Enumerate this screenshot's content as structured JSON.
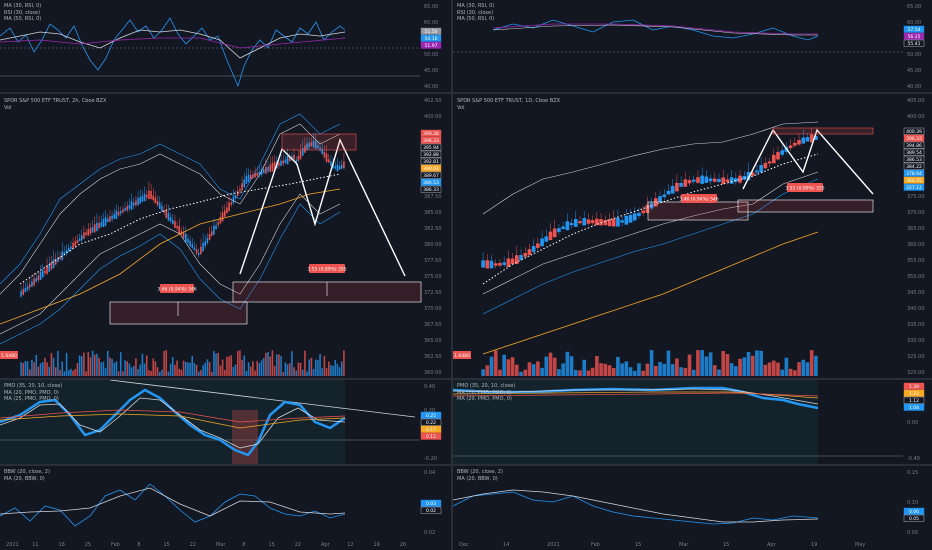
{
  "left": {
    "rsi_titles": [
      "MA (30, RSI, 0)",
      "RSI (30, close)",
      "MA (50, RSI, 0)"
    ],
    "rsi_right_ticks": [
      "65.00",
      "60.00",
      "55.00",
      "50.00",
      "45.00",
      "40.00"
    ],
    "rsi_tags": [
      {
        "text": "55.50",
        "color": "#9598a1"
      },
      {
        "text": "54.16",
        "color": "#2196f3"
      },
      {
        "text": "51.97",
        "color": "#9c27b0"
      }
    ],
    "main_titles": [
      "SPDR S&P 500 ETF TRUST, 2h, Cboe BZX",
      "Vol"
    ],
    "main_right_ticks": [
      "402.50",
      "400.00",
      "397.50",
      "395.00",
      "392.50",
      "390.00",
      "387.50",
      "385.00",
      "382.50",
      "380.00",
      "377.50",
      "375.00",
      "372.50",
      "370.00",
      "367.50",
      "365.00",
      "362.50",
      "360.00"
    ],
    "main_tags": [
      {
        "text": "399.38",
        "color": "#ef5350"
      },
      {
        "text": "396.33",
        "color": "#ef5350"
      },
      {
        "text": "395.94",
        "color": "#131722"
      },
      {
        "text": "392.88",
        "color": "#131722"
      },
      {
        "text": "392.81",
        "color": "#131722"
      },
      {
        "text": "390.04",
        "color": "#f9a825"
      },
      {
        "text": "389.67",
        "color": "#131722"
      },
      {
        "text": "386.53",
        "color": "#2196f3"
      },
      {
        "text": "386.33",
        "color": "#131722"
      }
    ],
    "box_labels": [
      "3.46 (0.94%) 346",
      "3.55 (0.89%) 355"
    ],
    "volume_tag": "1.6480",
    "pmo_titles": [
      "PMO (35, 20, 10, close)",
      "MA (20, PMO, PMO, 0)",
      "MA (25, PMO, PMO, 0)"
    ],
    "pmo_right_ticks": [
      "0.40",
      "0.20",
      "0.00",
      "-0.20"
    ],
    "pmo_tags": [
      {
        "text": "0.25",
        "color": "#2196f3"
      },
      {
        "text": "0.22",
        "color": "#131722"
      },
      {
        "text": "0.17",
        "color": "#f9a825"
      },
      {
        "text": "0.12",
        "color": "#ef5350"
      }
    ],
    "bbw_titles": [
      "BBW (20, close, 2)",
      "MA (20, BBW, 0)"
    ],
    "bbw_right_ticks": [
      "0.04",
      "0.02"
    ],
    "bbw_tags": [
      {
        "text": "0.03",
        "color": "#2196f3"
      },
      {
        "text": "0.02",
        "color": "#131722"
      }
    ],
    "time_axis": [
      "2021",
      "11",
      "18",
      "25",
      "Feb",
      "8",
      "15",
      "22",
      "Mar",
      "8",
      "15",
      "22",
      "Apr",
      "12",
      "19",
      "26"
    ]
  },
  "right": {
    "rsi_titles": [
      "MA (30, RSI, 0)",
      "RSI (30, close)",
      "MA (50, RSI, 0)"
    ],
    "rsi_right_ticks": [
      "65.00",
      "60.00",
      "55.00",
      "50.00",
      "45.00",
      "40.00"
    ],
    "rsi_tags": [
      {
        "text": "57.54",
        "color": "#2196f3"
      },
      {
        "text": "56.25",
        "color": "#9c27b0"
      },
      {
        "text": "55.41",
        "color": "#131722"
      }
    ],
    "main_titles": [
      "SPDR S&P 500 ETF TRUST, 1D, Cboe BZX",
      "Vol"
    ],
    "main_right_ticks": [
      "405.00",
      "400.00",
      "395.00",
      "390.00",
      "385.00",
      "380.00",
      "375.00",
      "370.00",
      "365.00",
      "360.00",
      "355.00",
      "350.00",
      "345.00",
      "340.00",
      "335.00",
      "330.00",
      "325.00",
      "320.00"
    ],
    "main_tags": [
      {
        "text": "400.39",
        "color": "#131722"
      },
      {
        "text": "396.33",
        "color": "#ef5350"
      },
      {
        "text": "394.86",
        "color": "#131722"
      },
      {
        "text": "389.54",
        "color": "#131722"
      },
      {
        "text": "386.53",
        "color": "#131722"
      },
      {
        "text": "384.22",
        "color": "#131722"
      },
      {
        "text": "378.94",
        "color": "#2196f3"
      },
      {
        "text": "364.55",
        "color": "#f9a825"
      },
      {
        "text": "327.12",
        "color": "#2196f3"
      }
    ],
    "box_labels": [
      "3.46 (0.94%) 346",
      "3.55 (0.89%) 355"
    ],
    "volume_tag": "1.6480",
    "pmo_titles": [
      "PMO (35, 20, 10, close)",
      "MA (20, PMO, PMO, 0)",
      "MA (20, PMO, PMO, 0)"
    ],
    "pmo_right_ticks": [
      "0.40",
      "0.00",
      "-0.40"
    ],
    "pmo_tags": [
      {
        "text": "1.39",
        "color": "#ef5350"
      },
      {
        "text": "1.22",
        "color": "#f9a825"
      },
      {
        "text": "1.12",
        "color": "#131722"
      },
      {
        "text": "1.04",
        "color": "#2196f3"
      }
    ],
    "bbw_titles": [
      "BBW (20, close, 2)",
      "MA (20, BBW, 0)"
    ],
    "bbw_right_ticks": [
      "0.15",
      "0.10",
      "0.05"
    ],
    "bbw_tags": [
      {
        "text": "0.06",
        "color": "#2196f3"
      },
      {
        "text": "0.05",
        "color": "#131722"
      }
    ],
    "time_axis": [
      "Dec",
      "14",
      "2021",
      "Feb",
      "15",
      "Mar",
      "15",
      "Apr",
      "19",
      "May"
    ]
  },
  "colors": {
    "up": "#26a69a",
    "down": "#ef5350",
    "blue": "#2196f3",
    "bg": "#131722",
    "grid": "#2a2e39",
    "yellow": "#f9a825",
    "white": "#ffffff"
  }
}
